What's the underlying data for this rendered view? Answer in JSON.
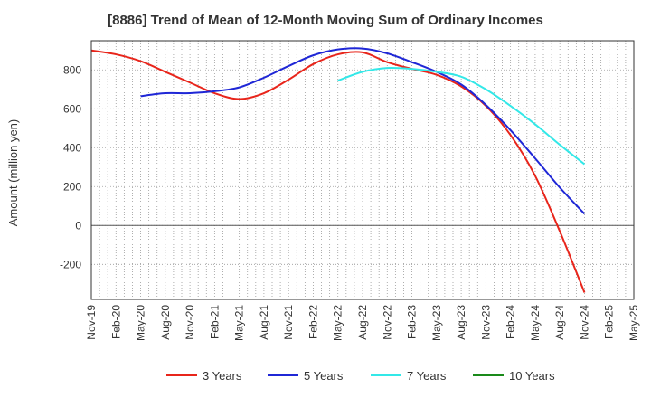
{
  "chart_data": {
    "type": "line",
    "title": "[8886]  Trend of Mean of 12-Month Moving Sum of Ordinary Incomes",
    "xlabel": "",
    "ylabel": "Amount (million yen)",
    "ylim": [
      -380,
      950
    ],
    "yticks": [
      -200,
      0,
      200,
      400,
      600,
      800
    ],
    "grid": true,
    "legend_position": "bottom",
    "categories": [
      "Nov-19",
      "Feb-20",
      "May-20",
      "Aug-20",
      "Nov-20",
      "Feb-21",
      "May-21",
      "Aug-21",
      "Nov-21",
      "Feb-22",
      "May-22",
      "Aug-22",
      "Nov-22",
      "Feb-23",
      "May-23",
      "Aug-23",
      "Nov-23",
      "Feb-24",
      "May-24",
      "Aug-24",
      "Nov-24",
      "Feb-25",
      "May-25"
    ],
    "series": [
      {
        "name": "3 Years",
        "color": "#e8251b",
        "values": [
          900,
          880,
          845,
          790,
          735,
          680,
          650,
          680,
          750,
          830,
          880,
          890,
          840,
          805,
          775,
          715,
          615,
          465,
          255,
          -30,
          -345,
          null,
          null
        ]
      },
      {
        "name": "5 Years",
        "color": "#1f27d6",
        "values": [
          null,
          null,
          665,
          680,
          680,
          690,
          710,
          760,
          820,
          875,
          905,
          910,
          885,
          840,
          790,
          725,
          620,
          490,
          345,
          195,
          60,
          null,
          null
        ]
      },
      {
        "name": "7 Years",
        "color": "#33e8e8",
        "values": [
          null,
          null,
          null,
          null,
          null,
          null,
          null,
          null,
          null,
          null,
          745,
          790,
          810,
          805,
          790,
          765,
          700,
          615,
          520,
          415,
          315,
          null,
          null
        ]
      },
      {
        "name": "10 Years",
        "color": "#1a8a1a",
        "values": [
          null,
          null,
          null,
          null,
          null,
          null,
          null,
          null,
          null,
          null,
          null,
          null,
          null,
          null,
          null,
          null,
          null,
          null,
          null,
          null,
          null,
          null,
          null
        ]
      }
    ]
  }
}
